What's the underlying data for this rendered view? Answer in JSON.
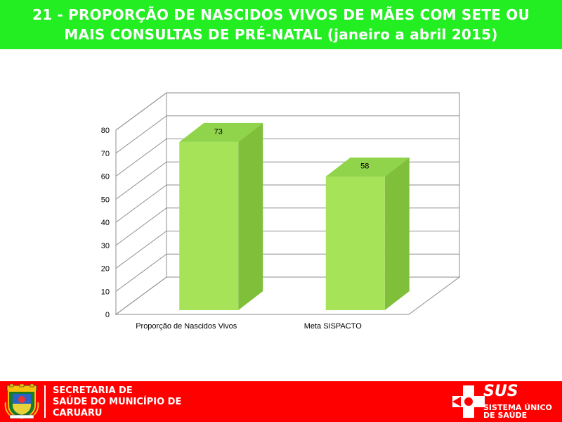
{
  "header": {
    "title_line1": "21 - PROPORÇÃO DE NASCIDOS VIVOS DE MÃES COM SETE OU",
    "title_line2": "MAIS CONSULTAS DE PRÉ-NATAL (janeiro a  abril 2015)"
  },
  "chart_data": {
    "type": "bar",
    "style": "3d-column",
    "categories": [
      "Proporção de Nascidos Vivos",
      "Meta SISPACTO"
    ],
    "values": [
      73,
      58
    ],
    "data_labels": [
      "73",
      "58"
    ],
    "ylim": [
      0,
      80
    ],
    "yticks": [
      0,
      10,
      20,
      30,
      40,
      50,
      60,
      70,
      80
    ],
    "grid": true,
    "legend": "none",
    "bar_color": "#a6e359"
  },
  "footer": {
    "secretaria_line1": "SECRETARIA DE",
    "secretaria_line2": "SAÚDE DO MUNICÍPIO DE",
    "secretaria_line3": "CARUARU",
    "sus_name": "SUS",
    "sus_sub1": "SISTEMA ÚNICO",
    "sus_sub2": "DE SAÚDE"
  },
  "colors": {
    "header": "#22ee22",
    "footer": "#ff0000"
  }
}
